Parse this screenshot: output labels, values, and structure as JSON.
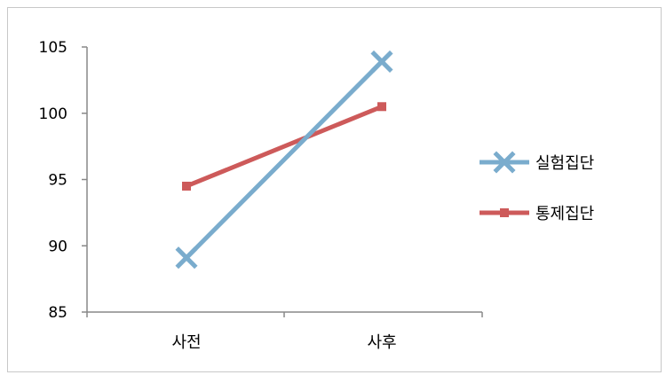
{
  "chart_data": {
    "type": "line",
    "categories": [
      "사전",
      "사후"
    ],
    "series": [
      {
        "name": "실험집단",
        "values": [
          89.1,
          103.9
        ],
        "color": "#7aaccd",
        "marker": "x"
      },
      {
        "name": "통제집단",
        "values": [
          94.5,
          100.5
        ],
        "color": "#cd5a5a",
        "marker": "square"
      }
    ],
    "ylim": [
      85,
      105
    ],
    "yticks": [
      85,
      90,
      95,
      100,
      105
    ],
    "xlabel": "",
    "ylabel": "",
    "legend_position": "right",
    "grid": false
  }
}
